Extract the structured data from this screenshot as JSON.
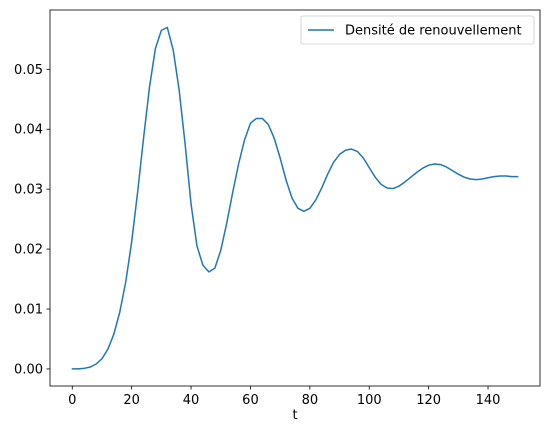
{
  "chart_data": {
    "type": "line",
    "title": "",
    "xlabel": "t",
    "ylabel": "",
    "xlim": [
      -7.5,
      157.5
    ],
    "ylim": [
      -0.00285,
      0.0599
    ],
    "xticks": [
      0,
      20,
      40,
      60,
      80,
      100,
      120,
      140
    ],
    "yticks": [
      0.0,
      0.01,
      0.02,
      0.03,
      0.04,
      0.05
    ],
    "ytick_labels": [
      "0.00",
      "0.01",
      "0.02",
      "0.03",
      "0.04",
      "0.05"
    ],
    "grid": false,
    "legend_position": "top-right",
    "series": [
      {
        "name": "Densité de renouvellement",
        "color": "#1f77b4",
        "x": [
          0,
          2,
          4,
          6,
          8,
          10,
          12,
          14,
          16,
          18,
          20,
          22,
          24,
          26,
          28,
          30,
          32,
          34,
          36,
          38,
          40,
          42,
          44,
          46,
          48,
          50,
          52,
          54,
          56,
          58,
          60,
          62,
          64,
          66,
          68,
          70,
          72,
          74,
          76,
          78,
          80,
          82,
          84,
          86,
          88,
          90,
          92,
          94,
          96,
          98,
          100,
          102,
          104,
          106,
          108,
          110,
          112,
          114,
          116,
          118,
          120,
          122,
          124,
          126,
          128,
          130,
          132,
          134,
          136,
          138,
          140,
          142,
          144,
          146,
          148,
          150
        ],
        "y": [
          0.0,
          0.0,
          0.0001,
          0.0003,
          0.0008,
          0.0017,
          0.0033,
          0.0058,
          0.0095,
          0.0145,
          0.0212,
          0.0295,
          0.0385,
          0.047,
          0.0535,
          0.0565,
          0.057,
          0.0532,
          0.0465,
          0.0375,
          0.0275,
          0.0205,
          0.0173,
          0.0162,
          0.0168,
          0.0198,
          0.0243,
          0.0294,
          0.0342,
          0.0382,
          0.041,
          0.0418,
          0.0418,
          0.0408,
          0.0385,
          0.0352,
          0.0315,
          0.0285,
          0.0268,
          0.0263,
          0.0268,
          0.0282,
          0.0302,
          0.0325,
          0.0345,
          0.0358,
          0.0365,
          0.0367,
          0.0363,
          0.0352,
          0.0336,
          0.032,
          0.0308,
          0.0302,
          0.0301,
          0.0305,
          0.0312,
          0.032,
          0.0328,
          0.0335,
          0.034,
          0.0342,
          0.0341,
          0.0337,
          0.0331,
          0.0325,
          0.032,
          0.0317,
          0.0316,
          0.0317,
          0.0319,
          0.0321,
          0.0322,
          0.0322,
          0.0321,
          0.0321
        ]
      }
    ]
  }
}
